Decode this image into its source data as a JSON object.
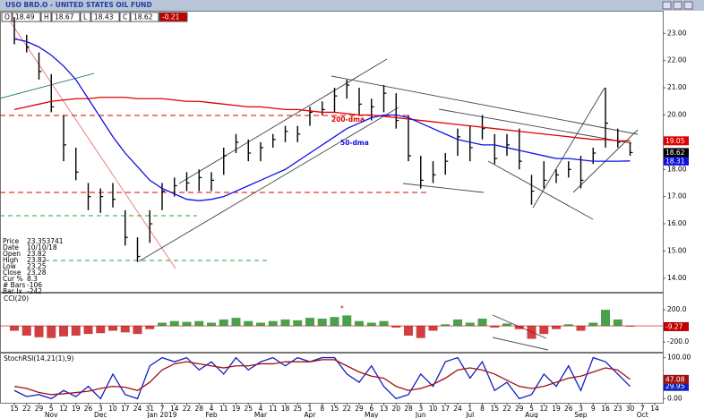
{
  "header": {
    "title": "USO BRD.O - UNITED STATES OIL FUND",
    "fields": [
      "O",
      "18.49",
      "H",
      "18.67",
      "L",
      "18.43",
      "C",
      "18.62",
      "-0.21"
    ]
  },
  "info_box": [
    [
      "Price",
      "23.353741"
    ],
    [
      "Date",
      "10/10/18"
    ],
    [
      "Open",
      "23.82"
    ],
    [
      "High",
      "23.82"
    ],
    [
      "Low",
      "23.25"
    ],
    [
      "Close",
      "23.28"
    ],
    [
      "Cur %",
      "8.3"
    ],
    [
      "# Bars",
      "-106"
    ],
    [
      "Bar Ix",
      "-242"
    ]
  ],
  "annotations": [
    {
      "text": "200-dma",
      "color": "#e00000"
    },
    {
      "text": "50-dma",
      "color": "#1010e0"
    }
  ],
  "chart_data": [
    {
      "type": "hlc",
      "color": "#000000",
      "high": [
        23.6,
        22.95,
        22.3,
        21.5,
        20.0,
        18.8,
        17.5,
        17.3,
        17.5,
        16.5,
        15.5,
        16.5,
        17.5,
        17.7,
        17.9,
        18.0,
        17.9,
        18.8,
        19.3,
        19.1,
        19.0,
        19.3,
        19.6,
        19.6,
        20.3,
        20.5,
        21.0,
        21.3,
        21.0,
        20.6,
        21.1,
        20.8,
        20.0,
        18.5,
        18.3,
        18.6,
        19.5,
        19.6,
        20.0,
        19.3,
        19.3,
        19.5,
        17.8,
        18.3,
        18.0,
        18.3,
        18.5,
        18.8,
        21.0,
        19.5,
        19.0,
        null,
        null
      ],
      "low": [
        22.6,
        22.3,
        21.3,
        20.1,
        18.3,
        17.6,
        16.5,
        16.4,
        16.6,
        15.2,
        14.6,
        15.3,
        16.5,
        17.0,
        17.2,
        17.2,
        17.2,
        17.8,
        18.6,
        18.3,
        18.3,
        18.8,
        19.0,
        19.0,
        19.6,
        20.0,
        20.1,
        20.6,
        20.0,
        19.8,
        20.1,
        19.5,
        18.3,
        17.3,
        17.5,
        17.8,
        18.5,
        18.3,
        19.1,
        18.2,
        18.5,
        18.0,
        16.7,
        17.3,
        17.5,
        17.7,
        17.3,
        18.2,
        18.8,
        18.8,
        18.5,
        null,
        null
      ],
      "close": [
        22.8,
        22.5,
        21.6,
        20.3,
        18.9,
        17.9,
        17.0,
        17.0,
        16.9,
        15.5,
        14.8,
        16.0,
        17.2,
        17.4,
        17.5,
        17.7,
        17.6,
        18.5,
        19.0,
        18.6,
        18.8,
        19.1,
        19.4,
        19.3,
        20.1,
        20.2,
        20.7,
        21.1,
        20.4,
        20.3,
        20.8,
        19.8,
        18.5,
        17.6,
        17.8,
        18.3,
        19.2,
        18.8,
        19.5,
        18.4,
        18.9,
        18.3,
        17.2,
        17.6,
        17.8,
        18.0,
        17.6,
        18.6,
        19.7,
        19.0,
        18.62,
        null,
        null
      ],
      "lines": [
        {
          "color": "#e00000",
          "values": [
            20.2,
            20.3,
            20.4,
            20.5,
            20.55,
            20.6,
            20.6,
            20.65,
            20.65,
            20.65,
            20.6,
            20.6,
            20.6,
            20.55,
            20.5,
            20.5,
            20.45,
            20.4,
            20.35,
            20.3,
            20.3,
            20.25,
            20.2,
            20.2,
            20.15,
            20.1,
            20.1,
            20.05,
            20.0,
            20.0,
            19.95,
            19.9,
            19.85,
            19.8,
            19.75,
            19.7,
            19.65,
            19.6,
            19.55,
            19.5,
            19.45,
            19.4,
            19.35,
            19.3,
            19.25,
            19.2,
            19.15,
            19.1,
            19.1,
            19.05,
            19.05,
            null,
            null
          ]
        },
        {
          "color": "#1010e0",
          "values": [
            22.8,
            22.7,
            22.5,
            22.2,
            21.8,
            21.3,
            20.6,
            19.9,
            19.2,
            18.6,
            18.1,
            17.6,
            17.3,
            17.1,
            16.9,
            16.85,
            16.9,
            17.0,
            17.2,
            17.4,
            17.6,
            17.8,
            18.0,
            18.3,
            18.6,
            18.9,
            19.2,
            19.5,
            19.7,
            19.9,
            20.0,
            20.0,
            19.9,
            19.7,
            19.5,
            19.3,
            19.1,
            19.0,
            18.9,
            18.9,
            18.8,
            18.7,
            18.6,
            18.5,
            18.4,
            18.4,
            18.35,
            18.3,
            18.3,
            18.3,
            18.31,
            null,
            null
          ]
        }
      ],
      "ylim": [
        13.5,
        23.8
      ],
      "yticks": [
        {
          "value": 14,
          "label": "14.00"
        },
        {
          "value": 15,
          "label": "15.00"
        },
        {
          "value": 16,
          "label": "16.00"
        },
        {
          "value": 17,
          "label": "17.00"
        },
        {
          "value": 18,
          "label": "18.00"
        },
        {
          "value": 19,
          "label": "19.00"
        },
        {
          "value": 20,
          "label": "20.00"
        },
        {
          "value": 21,
          "label": "21.00"
        },
        {
          "value": 22,
          "label": "22.00"
        },
        {
          "value": 23,
          "label": "23.00"
        }
      ]
    },
    {
      "type": "histogram",
      "title": "CCI(20)",
      "positive_color": "#108010",
      "negative_color": "#c00000",
      "values": [
        -60,
        -120,
        -140,
        -150,
        -130,
        -120,
        -100,
        -90,
        -60,
        -80,
        -100,
        -40,
        40,
        60,
        50,
        60,
        40,
        80,
        100,
        60,
        40,
        60,
        80,
        70,
        100,
        90,
        110,
        130,
        60,
        40,
        60,
        -20,
        -120,
        -150,
        -60,
        20,
        80,
        40,
        90,
        -20,
        30,
        -40,
        -160,
        -100,
        -40,
        20,
        -60,
        40,
        200,
        80,
        -9.27,
        null,
        null
      ],
      "ylim": [
        -320,
        400
      ],
      "yticks": [
        {
          "value": -200,
          "label": "-200.0"
        },
        {
          "value": 200,
          "label": "200.0"
        }
      ]
    },
    {
      "type": "line",
      "title": "StochRSI(14,21(1),9)",
      "series": [
        {
          "color": "#1020c0",
          "values": [
            20,
            5,
            10,
            0,
            20,
            5,
            30,
            0,
            60,
            10,
            0,
            80,
            100,
            90,
            100,
            70,
            90,
            60,
            100,
            70,
            90,
            100,
            80,
            100,
            90,
            100,
            100,
            60,
            40,
            80,
            30,
            0,
            10,
            60,
            30,
            90,
            100,
            50,
            90,
            20,
            40,
            0,
            10,
            60,
            30,
            80,
            20,
            100,
            90,
            60,
            29.95,
            null,
            null
          ]
        },
        {
          "color": "#a01010",
          "values": [
            30,
            25,
            15,
            10,
            12,
            15,
            18,
            25,
            30,
            28,
            20,
            40,
            70,
            85,
            90,
            85,
            80,
            75,
            80,
            80,
            85,
            85,
            90,
            90,
            90,
            95,
            95,
            80,
            65,
            55,
            50,
            30,
            20,
            25,
            35,
            50,
            70,
            75,
            70,
            60,
            45,
            30,
            25,
            30,
            40,
            50,
            55,
            65,
            75,
            70,
            47.08,
            null,
            null
          ]
        }
      ],
      "ylim": [
        -10,
        110
      ],
      "yticks": [
        {
          "value": 0,
          "label": "0.00"
        },
        {
          "value": 100,
          "label": "100.00"
        }
      ],
      "categories": [
        "15",
        "22",
        "29",
        "5",
        "12",
        "19",
        "26",
        "3",
        "10",
        "17",
        "24",
        "31",
        "7",
        "14",
        "22",
        "28",
        "4",
        "11",
        "19",
        "25",
        "4",
        "11",
        "18",
        "25",
        "1",
        "8",
        "15",
        "22",
        "29",
        "6",
        "13",
        "20",
        "28",
        "3",
        "10",
        "17",
        "24",
        "1",
        "8",
        "15",
        "22",
        "29",
        "5",
        "12",
        "19",
        "26",
        "3",
        "9",
        "16",
        "23",
        "30",
        "7",
        "14"
      ],
      "month_labels": [
        null,
        null,
        null,
        "Nov",
        null,
        null,
        null,
        "Dec",
        null,
        null,
        null,
        null,
        "Jan 2019",
        null,
        null,
        null,
        "Feb",
        null,
        null,
        null,
        "Mar",
        null,
        null,
        null,
        "Apr",
        null,
        null,
        null,
        null,
        "May",
        null,
        null,
        null,
        "Jun",
        null,
        null,
        null,
        "Jul",
        null,
        null,
        null,
        null,
        "Aug",
        null,
        null,
        null,
        "Sep",
        null,
        null,
        null,
        null,
        "Oct",
        null
      ]
    }
  ]
}
